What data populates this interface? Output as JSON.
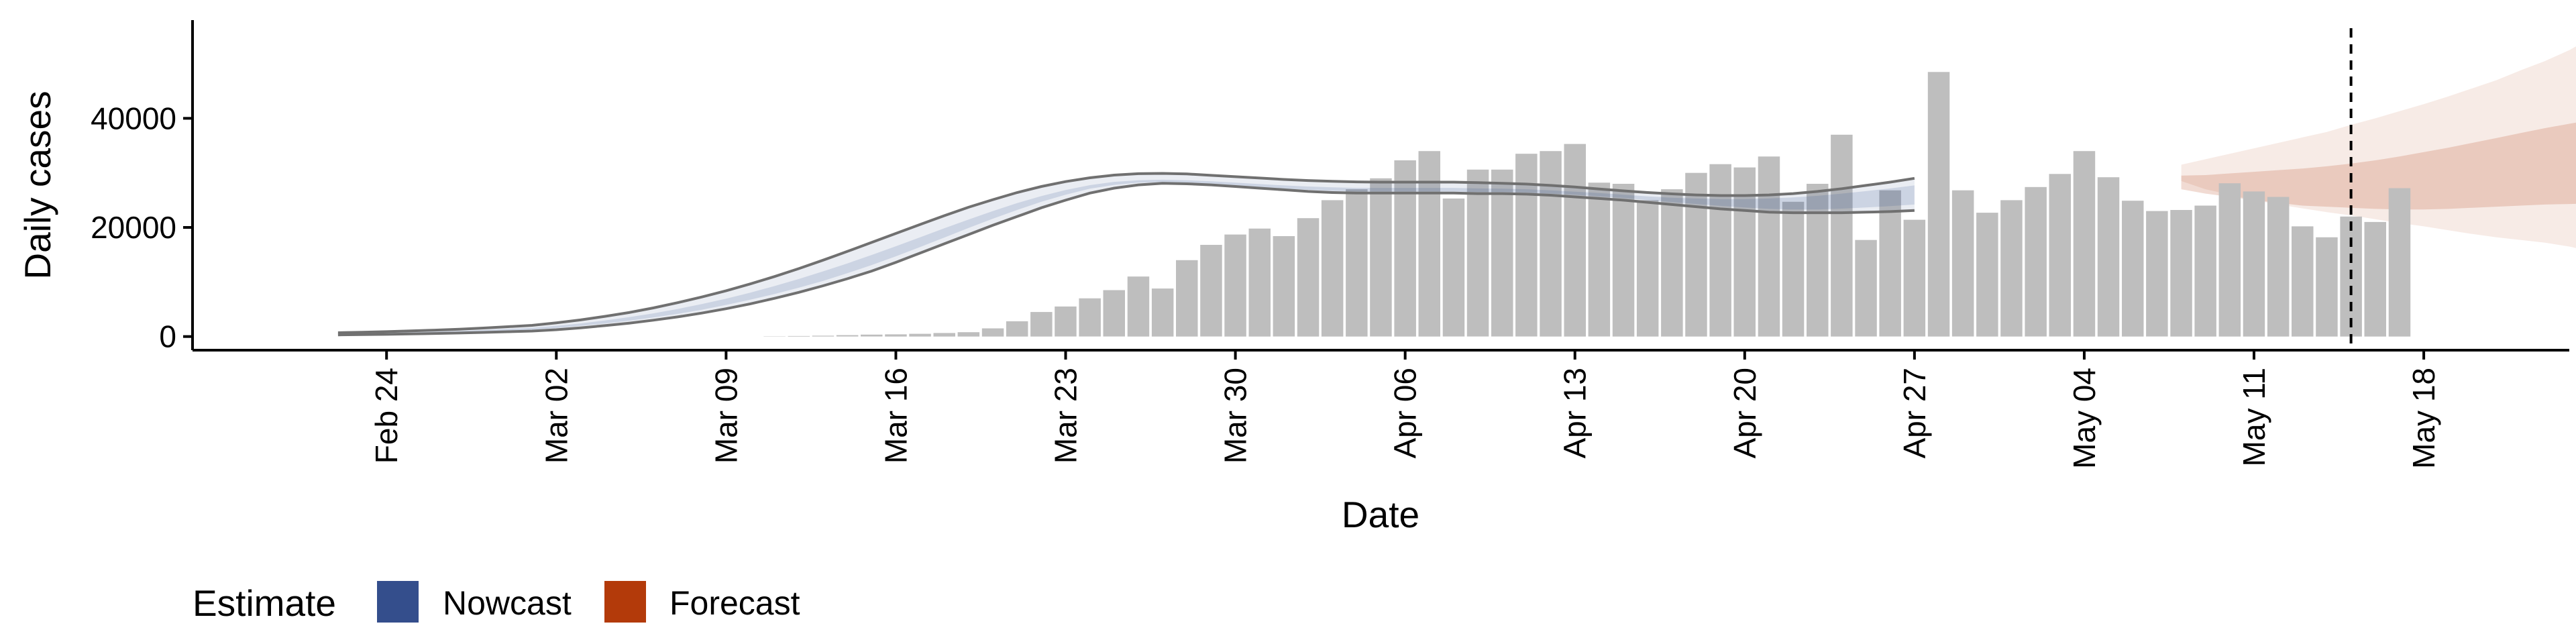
{
  "chart_data": {
    "type": "bar",
    "xlabel": "Date",
    "ylabel": "Daily cases",
    "ylim": [
      -2500,
      58000
    ],
    "y_ticks": [
      0,
      20000,
      40000
    ],
    "y_tick_labels": [
      "0",
      "20000",
      "40000"
    ],
    "x_ticks": [
      "2020-02-24",
      "2020-03-02",
      "2020-03-09",
      "2020-03-16",
      "2020-03-23",
      "2020-03-30",
      "2020-04-06",
      "2020-04-13",
      "2020-04-20",
      "2020-04-27",
      "2020-05-04",
      "2020-05-11",
      "2020-05-18"
    ],
    "x_tick_labels": [
      "Feb 24",
      "Mar 02",
      "Mar 09",
      "Mar 16",
      "Mar 23",
      "Mar 30",
      "Apr 06",
      "Apr 13",
      "Apr 20",
      "Apr 27",
      "May 04",
      "May 11",
      "May 18"
    ],
    "xlim": [
      "2020-02-16",
      "2020-05-24"
    ],
    "grid": false,
    "legend_position": "bottom-left",
    "colors": {
      "bars": "#bebebe",
      "nowcast": "#344e8c",
      "forecast": "#b33a0a",
      "outline": "#707070",
      "vline": "#000000"
    },
    "legend": {
      "title": "Estimate",
      "entries": [
        {
          "label": "Nowcast",
          "color": "#344e8c"
        },
        {
          "label": "Forecast",
          "color": "#b33a0a"
        }
      ]
    },
    "reported_cases": {
      "start_date": "2020-03-11",
      "values": [
        50,
        100,
        150,
        250,
        350,
        400,
        500,
        650,
        800,
        1500,
        2800,
        4500,
        5500,
        7000,
        8500,
        11000,
        8800,
        14000,
        16800,
        18700,
        19800,
        18400,
        21700,
        25000,
        27000,
        29000,
        32300,
        34000,
        25300,
        30600,
        30600,
        33500,
        34000,
        35300,
        28200,
        28000,
        25000,
        27000,
        30000,
        31600,
        31000,
        33000,
        24700,
        28000,
        37000,
        17700,
        26800,
        21400,
        48500,
        26800,
        22700,
        25000,
        27400,
        29800,
        34000,
        29200,
        24900,
        23000,
        23200,
        24000,
        28100,
        26600,
        25600,
        20200,
        18200,
        22000,
        21000,
        27200
      ]
    },
    "nowcast": {
      "start_date": "2020-02-22",
      "outer_lower": [
        300,
        350,
        400,
        480,
        560,
        650,
        760,
        880,
        1000,
        1250,
        1600,
        2000,
        2450,
        3000,
        3600,
        4300,
        5100,
        6000,
        7000,
        8100,
        9300,
        10600,
        12000,
        13600,
        15300,
        17000,
        18700,
        20400,
        22000,
        23600,
        25000,
        26300,
        27200,
        27800,
        28100,
        28000,
        27800,
        27500,
        27200,
        26900,
        26600,
        26400,
        26300,
        26300,
        26300,
        26300,
        26300,
        26200,
        26200,
        26100,
        25900,
        25600,
        25300,
        25000,
        24600,
        24200,
        23800,
        23400,
        23100,
        22800,
        22700,
        22700,
        22700,
        22800,
        22900,
        23100
      ],
      "inner_lower": [
        400,
        460,
        520,
        600,
        700,
        810,
        940,
        1090,
        1260,
        1560,
        1950,
        2400,
        2900,
        3500,
        4150,
        4900,
        5800,
        6750,
        7800,
        8950,
        10200,
        11600,
        13100,
        14700,
        16400,
        18150,
        19900,
        21600,
        23200,
        24700,
        26000,
        27100,
        27800,
        28200,
        28300,
        28200,
        28000,
        27700,
        27400,
        27100,
        26900,
        26700,
        26600,
        26600,
        26600,
        26600,
        26600,
        26500,
        26500,
        26400,
        26200,
        26000,
        25700,
        25400,
        25000,
        24650,
        24300,
        23950,
        23650,
        23400,
        23300,
        23300,
        23450,
        23650,
        23900,
        24200
      ],
      "inner_upper": [
        520,
        590,
        670,
        770,
        890,
        1030,
        1190,
        1380,
        1590,
        1950,
        2400,
        2950,
        3550,
        4250,
        5050,
        5950,
        6950,
        8050,
        9250,
        10550,
        11950,
        13400,
        14950,
        16550,
        18200,
        19850,
        21450,
        23000,
        24450,
        25750,
        26850,
        27750,
        28350,
        28650,
        28750,
        28650,
        28450,
        28200,
        27950,
        27700,
        27500,
        27350,
        27250,
        27250,
        27250,
        27250,
        27250,
        27150,
        27100,
        27000,
        26800,
        26550,
        26300,
        26000,
        25700,
        25450,
        25300,
        25200,
        25200,
        25300,
        25500,
        25800,
        26200,
        26650,
        27150,
        27700
      ],
      "outer_upper": [
        700,
        800,
        900,
        1030,
        1180,
        1350,
        1560,
        1800,
        2050,
        2500,
        3050,
        3700,
        4400,
        5250,
        6200,
        7250,
        8400,
        9650,
        11000,
        12450,
        14000,
        15600,
        17250,
        18900,
        20550,
        22150,
        23700,
        25100,
        26400,
        27500,
        28400,
        29100,
        29600,
        29850,
        29900,
        29800,
        29550,
        29300,
        29050,
        28800,
        28600,
        28450,
        28350,
        28300,
        28300,
        28300,
        28300,
        28200,
        28100,
        27950,
        27700,
        27400,
        27050,
        26700,
        26400,
        26150,
        25950,
        25850,
        25850,
        25950,
        26200,
        26600,
        27100,
        27700,
        28300,
        29000
      ]
    },
    "forecast": {
      "start_date": "2020-05-08",
      "outer_lower": [
        28500,
        27000,
        26000,
        25000,
        24200,
        23500,
        22800,
        22200,
        21500,
        20800,
        20200,
        19500,
        18800,
        18200,
        17700,
        17200,
        16500,
        15500
      ],
      "inner_lower": [
        27000,
        26200,
        25600,
        25000,
        24500,
        24000,
        23800,
        23600,
        23400,
        23300,
        23300,
        23400,
        23600,
        23800,
        24000,
        24200,
        24300,
        24400
      ],
      "inner_upper": [
        29500,
        29600,
        29900,
        30200,
        30500,
        30800,
        31200,
        31700,
        32300,
        33000,
        33800,
        34600,
        35500,
        36400,
        37300,
        38200,
        39000,
        39800
      ],
      "outer_upper": [
        31500,
        32500,
        33500,
        34500,
        35500,
        36500,
        37500,
        38800,
        40000,
        41300,
        42600,
        44000,
        45500,
        47000,
        48800,
        50500,
        52500,
        55000
      ]
    },
    "forecast_date": "2020-05-15"
  }
}
